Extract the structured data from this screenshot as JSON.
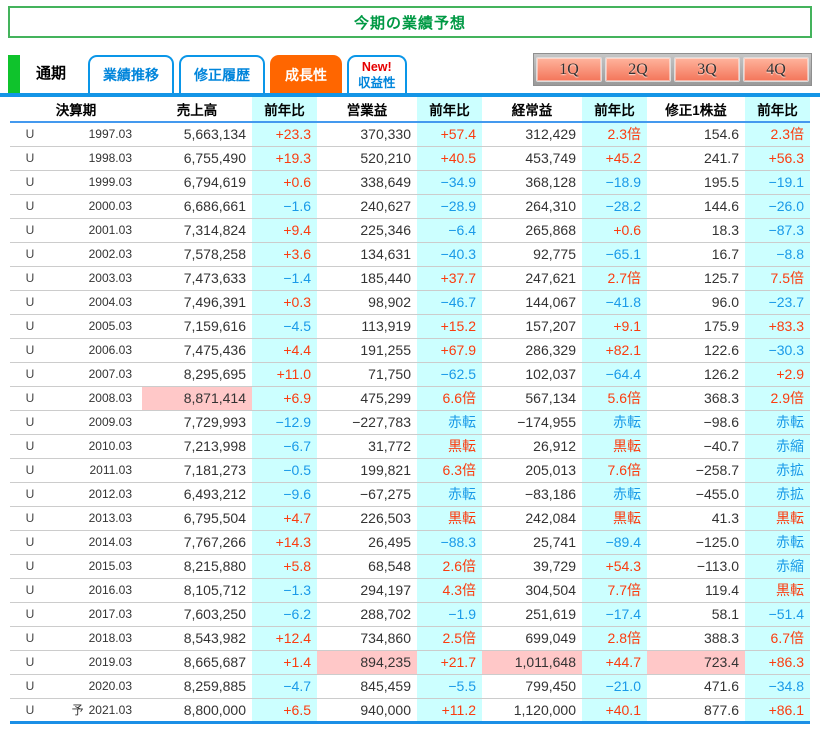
{
  "title": "今期の業績予想",
  "tabs": {
    "current": "通期",
    "tab1": "業績推移",
    "tab2": "修正履歴",
    "tab3": "成長性",
    "tab4_line1": "New!",
    "tab4_line2": "収益性"
  },
  "quarter_buttons": {
    "q1": "1Q",
    "q2": "2Q",
    "q3": "3Q",
    "q4": "4Q"
  },
  "colors": {
    "positive_text": "#FB3C0F",
    "negative_text": "#1A9AE8",
    "yoy_column_bg": "#CCFFFF",
    "record_high_bg": "#FFC8C8",
    "active_tab_bg": "#FF6600",
    "tab_border_blue": "#0A96E8",
    "title_green": "#009944"
  },
  "table": {
    "headers": [
      "決算期",
      "売上高",
      "前年比",
      "営業益",
      "前年比",
      "経常益",
      "前年比",
      "修正1株益",
      "前年比"
    ],
    "rows": [
      {
        "marker": "U",
        "forecast": "",
        "period": "1997.03",
        "sales": "5,663,134",
        "sales_yoy": "+23.3",
        "op": "370,330",
        "op_yoy": "+57.4",
        "ord": "312,429",
        "ord_yoy": "2.3倍",
        "eps": "154.6",
        "eps_yoy": "2.3倍",
        "hl": []
      },
      {
        "marker": "U",
        "forecast": "",
        "period": "1998.03",
        "sales": "6,755,490",
        "sales_yoy": "+19.3",
        "op": "520,210",
        "op_yoy": "+40.5",
        "ord": "453,749",
        "ord_yoy": "+45.2",
        "eps": "241.7",
        "eps_yoy": "+56.3",
        "hl": []
      },
      {
        "marker": "U",
        "forecast": "",
        "period": "1999.03",
        "sales": "6,794,619",
        "sales_yoy": "+0.6",
        "op": "338,649",
        "op_yoy": "−34.9",
        "ord": "368,128",
        "ord_yoy": "−18.9",
        "eps": "195.5",
        "eps_yoy": "−19.1",
        "hl": []
      },
      {
        "marker": "U",
        "forecast": "",
        "period": "2000.03",
        "sales": "6,686,661",
        "sales_yoy": "−1.6",
        "op": "240,627",
        "op_yoy": "−28.9",
        "ord": "264,310",
        "ord_yoy": "−28.2",
        "eps": "144.6",
        "eps_yoy": "−26.0",
        "hl": []
      },
      {
        "marker": "U",
        "forecast": "",
        "period": "2001.03",
        "sales": "7,314,824",
        "sales_yoy": "+9.4",
        "op": "225,346",
        "op_yoy": "−6.4",
        "ord": "265,868",
        "ord_yoy": "+0.6",
        "eps": "18.3",
        "eps_yoy": "−87.3",
        "hl": []
      },
      {
        "marker": "U",
        "forecast": "",
        "period": "2002.03",
        "sales": "7,578,258",
        "sales_yoy": "+3.6",
        "op": "134,631",
        "op_yoy": "−40.3",
        "ord": "92,775",
        "ord_yoy": "−65.1",
        "eps": "16.7",
        "eps_yoy": "−8.8",
        "hl": []
      },
      {
        "marker": "U",
        "forecast": "",
        "period": "2003.03",
        "sales": "7,473,633",
        "sales_yoy": "−1.4",
        "op": "185,440",
        "op_yoy": "+37.7",
        "ord": "247,621",
        "ord_yoy": "2.7倍",
        "eps": "125.7",
        "eps_yoy": "7.5倍",
        "hl": []
      },
      {
        "marker": "U",
        "forecast": "",
        "period": "2004.03",
        "sales": "7,496,391",
        "sales_yoy": "+0.3",
        "op": "98,902",
        "op_yoy": "−46.7",
        "ord": "144,067",
        "ord_yoy": "−41.8",
        "eps": "96.0",
        "eps_yoy": "−23.7",
        "hl": []
      },
      {
        "marker": "U",
        "forecast": "",
        "period": "2005.03",
        "sales": "7,159,616",
        "sales_yoy": "−4.5",
        "op": "113,919",
        "op_yoy": "+15.2",
        "ord": "157,207",
        "ord_yoy": "+9.1",
        "eps": "175.9",
        "eps_yoy": "+83.3",
        "hl": []
      },
      {
        "marker": "U",
        "forecast": "",
        "period": "2006.03",
        "sales": "7,475,436",
        "sales_yoy": "+4.4",
        "op": "191,255",
        "op_yoy": "+67.9",
        "ord": "286,329",
        "ord_yoy": "+82.1",
        "eps": "122.6",
        "eps_yoy": "−30.3",
        "hl": []
      },
      {
        "marker": "U",
        "forecast": "",
        "period": "2007.03",
        "sales": "8,295,695",
        "sales_yoy": "+11.0",
        "op": "71,750",
        "op_yoy": "−62.5",
        "ord": "102,037",
        "ord_yoy": "−64.4",
        "eps": "126.2",
        "eps_yoy": "+2.9",
        "hl": []
      },
      {
        "marker": "U",
        "forecast": "",
        "period": "2008.03",
        "sales": "8,871,414",
        "sales_yoy": "+6.9",
        "op": "475,299",
        "op_yoy": "6.6倍",
        "ord": "567,134",
        "ord_yoy": "5.6倍",
        "eps": "368.3",
        "eps_yoy": "2.9倍",
        "hl": [
          "sales"
        ]
      },
      {
        "marker": "U",
        "forecast": "",
        "period": "2009.03",
        "sales": "7,729,993",
        "sales_yoy": "−12.9",
        "op": "−227,783",
        "op_yoy": "赤転",
        "ord": "−174,955",
        "ord_yoy": "赤転",
        "eps": "−98.6",
        "eps_yoy": "赤転",
        "hl": []
      },
      {
        "marker": "U",
        "forecast": "",
        "period": "2010.03",
        "sales": "7,213,998",
        "sales_yoy": "−6.7",
        "op": "31,772",
        "op_yoy": "黒転",
        "ord": "26,912",
        "ord_yoy": "黒転",
        "eps": "−40.7",
        "eps_yoy": "赤縮",
        "hl": []
      },
      {
        "marker": "U",
        "forecast": "",
        "period": "2011.03",
        "sales": "7,181,273",
        "sales_yoy": "−0.5",
        "op": "199,821",
        "op_yoy": "6.3倍",
        "ord": "205,013",
        "ord_yoy": "7.6倍",
        "eps": "−258.7",
        "eps_yoy": "赤拡",
        "hl": []
      },
      {
        "marker": "U",
        "forecast": "",
        "period": "2012.03",
        "sales": "6,493,212",
        "sales_yoy": "−9.6",
        "op": "−67,275",
        "op_yoy": "赤転",
        "ord": "−83,186",
        "ord_yoy": "赤転",
        "eps": "−455.0",
        "eps_yoy": "赤拡",
        "hl": []
      },
      {
        "marker": "U",
        "forecast": "",
        "period": "2013.03",
        "sales": "6,795,504",
        "sales_yoy": "+4.7",
        "op": "226,503",
        "op_yoy": "黒転",
        "ord": "242,084",
        "ord_yoy": "黒転",
        "eps": "41.3",
        "eps_yoy": "黒転",
        "hl": []
      },
      {
        "marker": "U",
        "forecast": "",
        "period": "2014.03",
        "sales": "7,767,266",
        "sales_yoy": "+14.3",
        "op": "26,495",
        "op_yoy": "−88.3",
        "ord": "25,741",
        "ord_yoy": "−89.4",
        "eps": "−125.0",
        "eps_yoy": "赤転",
        "hl": []
      },
      {
        "marker": "U",
        "forecast": "",
        "period": "2015.03",
        "sales": "8,215,880",
        "sales_yoy": "+5.8",
        "op": "68,548",
        "op_yoy": "2.6倍",
        "ord": "39,729",
        "ord_yoy": "+54.3",
        "eps": "−113.0",
        "eps_yoy": "赤縮",
        "hl": []
      },
      {
        "marker": "U",
        "forecast": "",
        "period": "2016.03",
        "sales": "8,105,712",
        "sales_yoy": "−1.3",
        "op": "294,197",
        "op_yoy": "4.3倍",
        "ord": "304,504",
        "ord_yoy": "7.7倍",
        "eps": "119.4",
        "eps_yoy": "黒転",
        "hl": []
      },
      {
        "marker": "U",
        "forecast": "",
        "period": "2017.03",
        "sales": "7,603,250",
        "sales_yoy": "−6.2",
        "op": "288,702",
        "op_yoy": "−1.9",
        "ord": "251,619",
        "ord_yoy": "−17.4",
        "eps": "58.1",
        "eps_yoy": "−51.4",
        "hl": []
      },
      {
        "marker": "U",
        "forecast": "",
        "period": "2018.03",
        "sales": "8,543,982",
        "sales_yoy": "+12.4",
        "op": "734,860",
        "op_yoy": "2.5倍",
        "ord": "699,049",
        "ord_yoy": "2.8倍",
        "eps": "388.3",
        "eps_yoy": "6.7倍",
        "hl": []
      },
      {
        "marker": "U",
        "forecast": "",
        "period": "2019.03",
        "sales": "8,665,687",
        "sales_yoy": "+1.4",
        "op": "894,235",
        "op_yoy": "+21.7",
        "ord": "1,011,648",
        "ord_yoy": "+44.7",
        "eps": "723.4",
        "eps_yoy": "+86.3",
        "hl": [
          "op",
          "ord",
          "eps"
        ]
      },
      {
        "marker": "U",
        "forecast": "",
        "period": "2020.03",
        "sales": "8,259,885",
        "sales_yoy": "−4.7",
        "op": "845,459",
        "op_yoy": "−5.5",
        "ord": "799,450",
        "ord_yoy": "−21.0",
        "eps": "471.6",
        "eps_yoy": "−34.8",
        "hl": []
      },
      {
        "marker": "U",
        "forecast": "予",
        "period": "2021.03",
        "sales": "8,800,000",
        "sales_yoy": "+6.5",
        "op": "940,000",
        "op_yoy": "+11.2",
        "ord": "1,120,000",
        "ord_yoy": "+40.1",
        "eps": "877.6",
        "eps_yoy": "+86.1",
        "hl": []
      }
    ]
  }
}
